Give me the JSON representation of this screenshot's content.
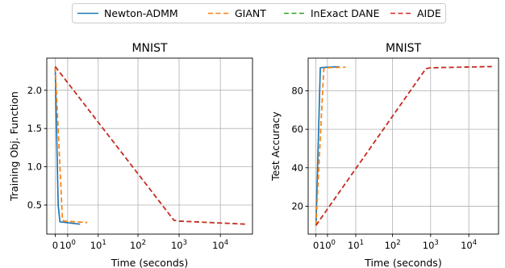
{
  "legend": [
    {
      "name": "Newton-ADMM",
      "color": "#1f77b4",
      "dash": "solid"
    },
    {
      "name": "GIANT",
      "color": "#ff7f0e",
      "dash": "dashed"
    },
    {
      "name": "InExact DANE",
      "color": "#2ca02c",
      "dash": "dashed"
    },
    {
      "name": "AIDE",
      "color": "#d62728",
      "dash": "dashed"
    }
  ],
  "legend_position": "top-center",
  "chart_data": [
    {
      "type": "line",
      "title": "MNIST",
      "xlabel": "Time (seconds)",
      "ylabel": "Training Obj. Function",
      "xscale": "symlog",
      "xlim": [
        -0.6,
        60000
      ],
      "ylim": [
        0.12,
        2.42
      ],
      "grid": true,
      "xticks": [
        {
          "value": 0,
          "label": "0"
        },
        {
          "value": 1,
          "label": "10",
          "sup": "0"
        },
        {
          "value": 10,
          "label": "10",
          "sup": "1"
        },
        {
          "value": 100,
          "label": "10",
          "sup": "2"
        },
        {
          "value": 1000,
          "label": "10",
          "sup": "3"
        },
        {
          "value": 10000,
          "label": "10",
          "sup": "4"
        }
      ],
      "yticks": [
        {
          "value": 0.5,
          "label": "0.5"
        },
        {
          "value": 1.0,
          "label": "1.0"
        },
        {
          "value": 1.5,
          "label": "1.5"
        },
        {
          "value": 2.0,
          "label": "2.0"
        }
      ],
      "series": [
        {
          "name": "Newton-ADMM",
          "x": [
            0.0,
            0.18,
            0.3,
            3.0
          ],
          "y": [
            2.3,
            0.5,
            0.28,
            0.25
          ]
        },
        {
          "name": "GIANT",
          "x": [
            0.0,
            0.5,
            0.7,
            5.0
          ],
          "y": [
            2.3,
            0.3,
            0.29,
            0.27
          ]
        },
        {
          "name": "InExact DANE",
          "x": [
            0.0,
            750.0,
            1000.0,
            40000.0
          ],
          "y": [
            2.31,
            0.3,
            0.29,
            0.25
          ]
        },
        {
          "name": "AIDE",
          "x": [
            0.0,
            750.0,
            1000.0,
            40000.0
          ],
          "y": [
            2.31,
            0.3,
            0.29,
            0.25
          ]
        }
      ]
    },
    {
      "type": "line",
      "title": "MNIST",
      "xlabel": "Time (seconds)",
      "ylabel": "Test Accuracy",
      "xscale": "symlog",
      "xlim": [
        -0.6,
        60000
      ],
      "ylim": [
        5.5,
        97
      ],
      "grid": true,
      "xticks": [
        {
          "value": 0,
          "label": "0"
        },
        {
          "value": 1,
          "label": "10",
          "sup": "0"
        },
        {
          "value": 10,
          "label": "10",
          "sup": "1"
        },
        {
          "value": 100,
          "label": "10",
          "sup": "2"
        },
        {
          "value": 1000,
          "label": "10",
          "sup": "3"
        },
        {
          "value": 10000,
          "label": "10",
          "sup": "4"
        }
      ],
      "yticks": [
        {
          "value": 20,
          "label": "20"
        },
        {
          "value": 40,
          "label": "40"
        },
        {
          "value": 60,
          "label": "60"
        },
        {
          "value": 80,
          "label": "80"
        }
      ],
      "series": [
        {
          "name": "Newton-ADMM",
          "x": [
            0.0,
            0.3,
            0.6,
            3.0
          ],
          "y": [
            10.0,
            92.0,
            92.2,
            92.5
          ]
        },
        {
          "name": "GIANT",
          "x": [
            0.0,
            0.6,
            0.8,
            5.0
          ],
          "y": [
            10.0,
            91.5,
            92.0,
            92.3
          ]
        },
        {
          "name": "InExact DANE",
          "x": [
            0.0,
            750.0,
            1000.0,
            40000.0
          ],
          "y": [
            10.0,
            91.5,
            92.0,
            92.6
          ]
        },
        {
          "name": "AIDE",
          "x": [
            0.0,
            750.0,
            1000.0,
            40000.0
          ],
          "y": [
            10.0,
            91.5,
            92.0,
            92.6
          ]
        }
      ]
    }
  ]
}
